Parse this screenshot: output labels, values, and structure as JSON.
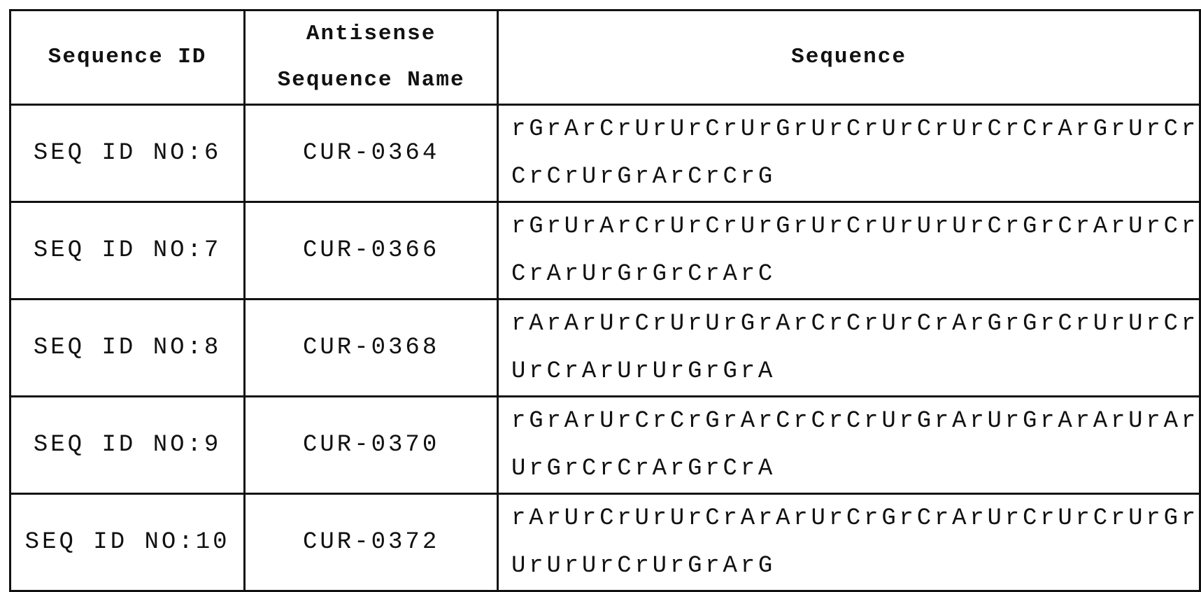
{
  "table": {
    "headers": {
      "seq_id": "Sequence ID",
      "name_line1": "Antisense",
      "name_line2": "Sequence Name",
      "sequence": "Sequence"
    },
    "rows": [
      {
        "seq_id": "SEQ ID NO:6",
        "name": "CUR-0364",
        "seq_line1": "rGrArCrUrUrCrUrGrUrCrUrCrUrCrCrArGrUrCr",
        "seq_line2": "CrCrUrGrArCrCrG"
      },
      {
        "seq_id": "SEQ ID NO:7",
        "name": "CUR-0366",
        "seq_line1": "rGrUrArCrUrCrUrGrUrCrUrUrUrCrGrCrArUrCr",
        "seq_line2": "CrArUrGrGrCrArC"
      },
      {
        "seq_id": "SEQ ID NO:8",
        "name": "CUR-0368",
        "seq_line1": "rArArUrCrUrUrGrArCrCrUrCrArGrGrCrUrUrCr",
        "seq_line2": "UrCrArUrUrGrGrA"
      },
      {
        "seq_id": "SEQ ID NO:9",
        "name": "CUR-0370",
        "seq_line1": "rGrArUrCrCrGrArCrCrCrUrGrArUrGrArArUrAr",
        "seq_line2": "UrGrCrCrArGrCrA"
      },
      {
        "seq_id": "SEQ ID NO:10",
        "name": "CUR-0372",
        "seq_line1": "rArUrCrUrUrCrArArUrCrGrCrArUrCrUrCrUrGr",
        "seq_line2": "UrUrUrCrUrGrArG"
      }
    ]
  }
}
